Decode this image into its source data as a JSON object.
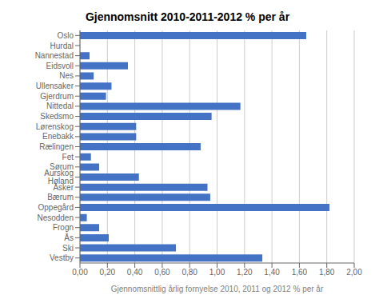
{
  "chart_data": {
    "type": "bar",
    "orientation": "horizontal",
    "title": "Gjennomsnitt 2010-2011-2012 % per år",
    "xlabel": "Gjennomsnittlig årlig fornyelse 2010, 2011 og 2012 % per år",
    "categories": [
      "Oslo",
      "Hurdal",
      "Nannestad",
      "Eidsvoll",
      "Nes",
      "Ullensaker",
      "Gjerdrum",
      "Nittedal",
      "Skedsmo",
      "Lørenskog",
      "Enebakk",
      "Rælingen",
      "Fet",
      "Sørum",
      "Aurskog Høland",
      "Asker",
      "Bærum",
      "Oppegård",
      "Nesodden",
      "Frogn",
      "Ås",
      "Ski",
      "Vestby"
    ],
    "values": [
      1.65,
      0.0,
      0.07,
      0.35,
      0.1,
      0.23,
      0.19,
      1.17,
      0.96,
      0.41,
      0.41,
      0.88,
      0.08,
      0.14,
      0.43,
      0.93,
      0.95,
      1.82,
      0.05,
      0.14,
      0.21,
      0.7,
      1.33
    ],
    "color": "#4472C4",
    "xlim": [
      0.0,
      2.0
    ],
    "xticks": [
      {
        "value": 0.0,
        "label": "0,00"
      },
      {
        "value": 0.2,
        "label": "0,20"
      },
      {
        "value": 0.4,
        "label": "0,40"
      },
      {
        "value": 0.6,
        "label": "0,60"
      },
      {
        "value": 0.8,
        "label": "0,80"
      },
      {
        "value": 1.0,
        "label": "1,00"
      },
      {
        "value": 1.2,
        "label": "1,20"
      },
      {
        "value": 1.4,
        "label": "1,40"
      },
      {
        "value": 1.6,
        "label": "1,60"
      },
      {
        "value": 1.8,
        "label": "1,80"
      },
      {
        "value": 2.0,
        "label": "2,00"
      }
    ],
    "grid": true
  }
}
